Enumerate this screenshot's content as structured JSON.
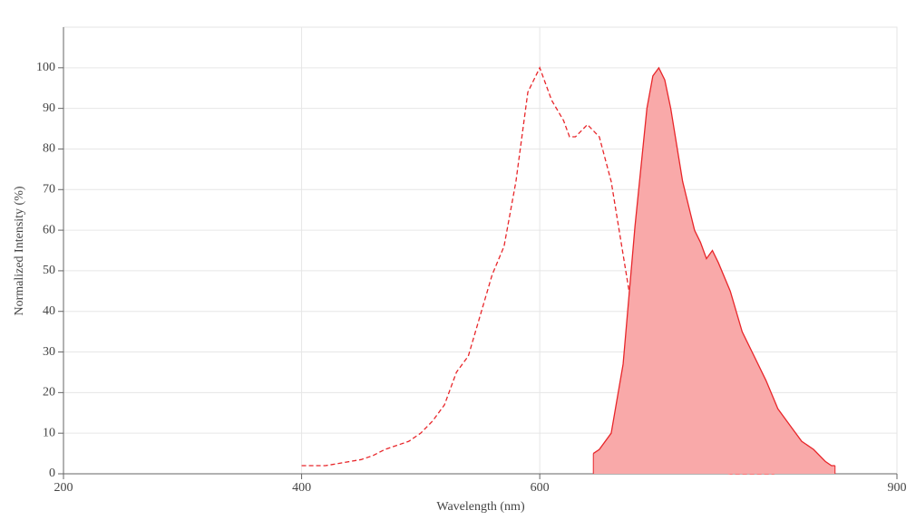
{
  "chart_data": {
    "type": "line",
    "xlabel": "Wavelength (nm)",
    "ylabel": "Normalized Intensity (%)",
    "xlim": [
      200,
      900
    ],
    "xticks": [
      200,
      400,
      600,
      900
    ],
    "ylim": [
      0,
      110
    ],
    "yticks": [
      0,
      10,
      20,
      30,
      40,
      50,
      60,
      70,
      80,
      90,
      100
    ],
    "grid": true,
    "series": [
      {
        "color": "#e8262a",
        "dashed": true,
        "filled": false,
        "x": [
          400,
          410,
          420,
          430,
          440,
          450,
          460,
          470,
          480,
          490,
          500,
          510,
          520,
          530,
          540,
          550,
          560,
          570,
          580,
          590,
          600,
          610,
          620,
          625,
          630,
          640,
          650,
          660,
          670,
          680,
          690,
          700,
          710,
          720,
          730,
          740,
          750,
          760,
          780,
          797
        ],
        "values": [
          2,
          2,
          2,
          2.5,
          3,
          3.5,
          4.5,
          6,
          7,
          8,
          10,
          13,
          17,
          25,
          29,
          39,
          49,
          56,
          72,
          94,
          100,
          92,
          87,
          83,
          83,
          86,
          83,
          72,
          54,
          36,
          23,
          14,
          7,
          4,
          2.5,
          1,
          0.5,
          0,
          0,
          0
        ]
      },
      {
        "color": "#e8262a",
        "dashed": false,
        "filled": true,
        "fill_color": "#f9a9a9",
        "x": [
          645,
          650,
          660,
          670,
          680,
          690,
          695,
          700,
          705,
          710,
          720,
          730,
          735,
          740,
          745,
          750,
          760,
          770,
          780,
          790,
          800,
          810,
          820,
          830,
          840,
          845,
          848
        ],
        "values": [
          5,
          6,
          10,
          27,
          61,
          90,
          98,
          100,
          97,
          90,
          72,
          60,
          57,
          53,
          55,
          52,
          45,
          35,
          29,
          23,
          16,
          12,
          8,
          6,
          3,
          2,
          2
        ]
      }
    ]
  }
}
